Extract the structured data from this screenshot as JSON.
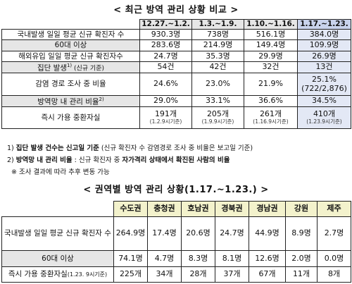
{
  "title1": "< 최근 방역 관리 상황 비교 >",
  "table1": {
    "periods": [
      "12.27.~1.2.",
      "1.3.~1.9.",
      "1.10.~1.16.",
      "1.17.~1.23."
    ],
    "rows": [
      {
        "label": "국내발생 일일 평균 신규 확진자 수",
        "values": [
          "930.3명",
          "738명",
          "516.1명",
          "384.0명"
        ]
      },
      {
        "label": "60대 이상",
        "values": [
          "283.6명",
          "214.9명",
          "149.4명",
          "109.9명"
        ]
      },
      {
        "label": "해외유입 일일 평균 신규 확진자수",
        "values": [
          "24.7명",
          "35.3명",
          "29.9명",
          "26.9명"
        ]
      },
      {
        "label": "집단 발생",
        "label_sup": "1)",
        "label_sub": " (신규 기준)",
        "values": [
          "54건",
          "42건",
          "32건",
          "13건"
        ]
      },
      {
        "label": "감염 경로 조사 중 비율",
        "values": [
          "24.6%",
          "23.0%",
          "21.9%",
          "25.1%"
        ],
        "extra": "(722/2,876)"
      },
      {
        "label": "방역망 내 관리 비율",
        "label_sup": "2)",
        "values": [
          "29.0%",
          "33.1%",
          "36.6%",
          "34.5%"
        ]
      },
      {
        "label": "즉시 가용 중환자실",
        "values": [
          "191개",
          "205개",
          "261개",
          "410개"
        ],
        "notes": [
          "(1.2.9시기준)",
          "(1.9.9시기준)",
          "(1.16.9시기준)",
          "(1.23.9시기준)"
        ]
      }
    ]
  },
  "notes": {
    "n1_prefix": "1) ",
    "n1_bold": "집단 발생 건수는 신고일 기준",
    "n1_rest": " (신규 확진자 수 감염경로 조사 중 비율은 보고일 기준)",
    "n2_prefix": "2) ",
    "n2_bold": "방역망 내 관리 비율",
    "n2_mid": " : 신규 확진자 중 ",
    "n2_bold2": "자가격리 상태에서 확진된 사람의 비율",
    "n3": "※ 조사 결과에 따라 추후 변동 가능"
  },
  "title2": "< 권역별 방역 관리 상황(1.17.~1.23.) >",
  "table2": {
    "regions": [
      "수도권",
      "충청권",
      "호남권",
      "경북권",
      "경남권",
      "강원",
      "제주"
    ],
    "rows": [
      {
        "label": "국내발생 일일 평균 신규 확진자 수",
        "values": [
          "264.9명",
          "17.4명",
          "20.6명",
          "24.7명",
          "44.9명",
          "8.9명",
          "2.7명"
        ]
      },
      {
        "label": "60대 이상",
        "values": [
          "74.1명",
          "4.7명",
          "8.3명",
          "8.1명",
          "12.6명",
          "2.0명",
          "0.0명"
        ]
      },
      {
        "label": "즉시 가용 중환자실",
        "label_sub": "(1.23. 9시기준)",
        "values": [
          "225개",
          "34개",
          "28개",
          "37개",
          "67개",
          "11개",
          "8개"
        ]
      }
    ]
  }
}
